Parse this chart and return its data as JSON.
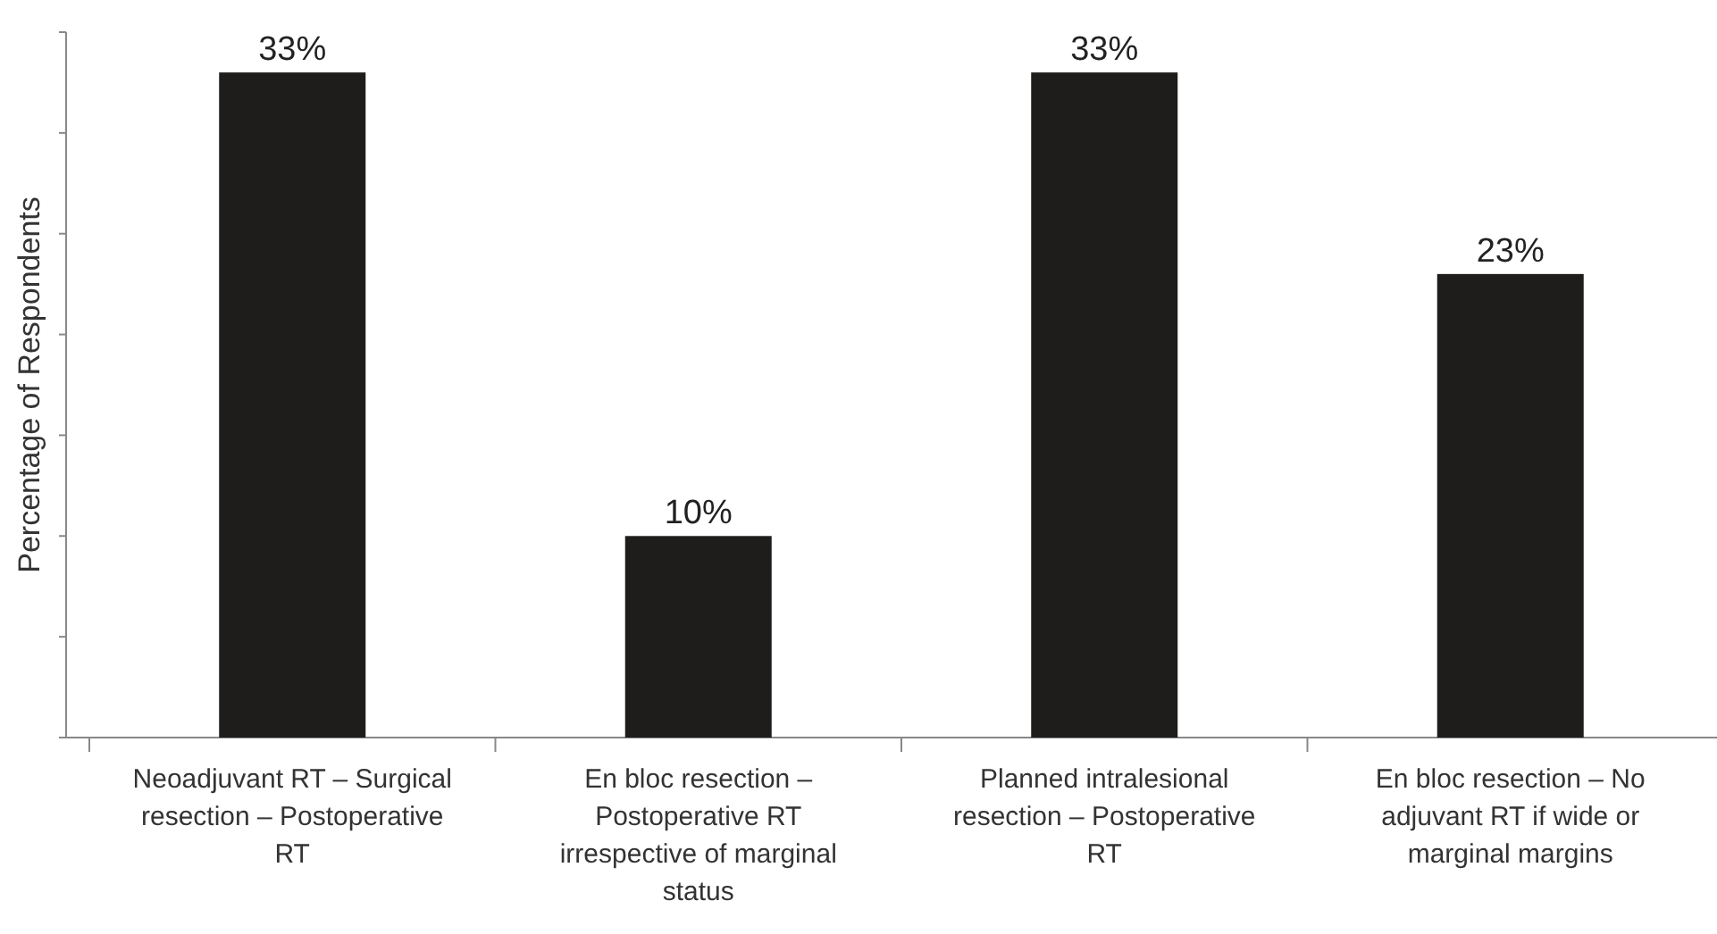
{
  "chart_data": {
    "type": "bar",
    "ylabel": "Percentage of Respondents",
    "categories": [
      "Neoadjuvant RT – Surgical resection – Postoperative RT",
      "En bloc resection – Postoperative RT irrespective of marginal status",
      "Planned intralesional resection – Postoperative RT",
      "En bloc resection – No adjuvant RT if wide or marginal margins"
    ],
    "values": [
      33,
      10,
      33,
      23
    ],
    "value_labels": [
      "33%",
      "10%",
      "33%",
      "23%"
    ],
    "color": "#1f1c1c",
    "ylim": [
      0,
      35
    ],
    "yticks": [
      {
        "value": 0,
        "label": null
      },
      {
        "value": 5,
        "label": null
      },
      {
        "value": 10,
        "label": null
      },
      {
        "value": 15,
        "label": null
      },
      {
        "value": 20,
        "label": null
      },
      {
        "value": 25,
        "label": null
      },
      {
        "value": 30,
        "label": null
      },
      {
        "value": 35,
        "label": null
      }
    ],
    "tick_labels": "x",
    "grid": false
  }
}
